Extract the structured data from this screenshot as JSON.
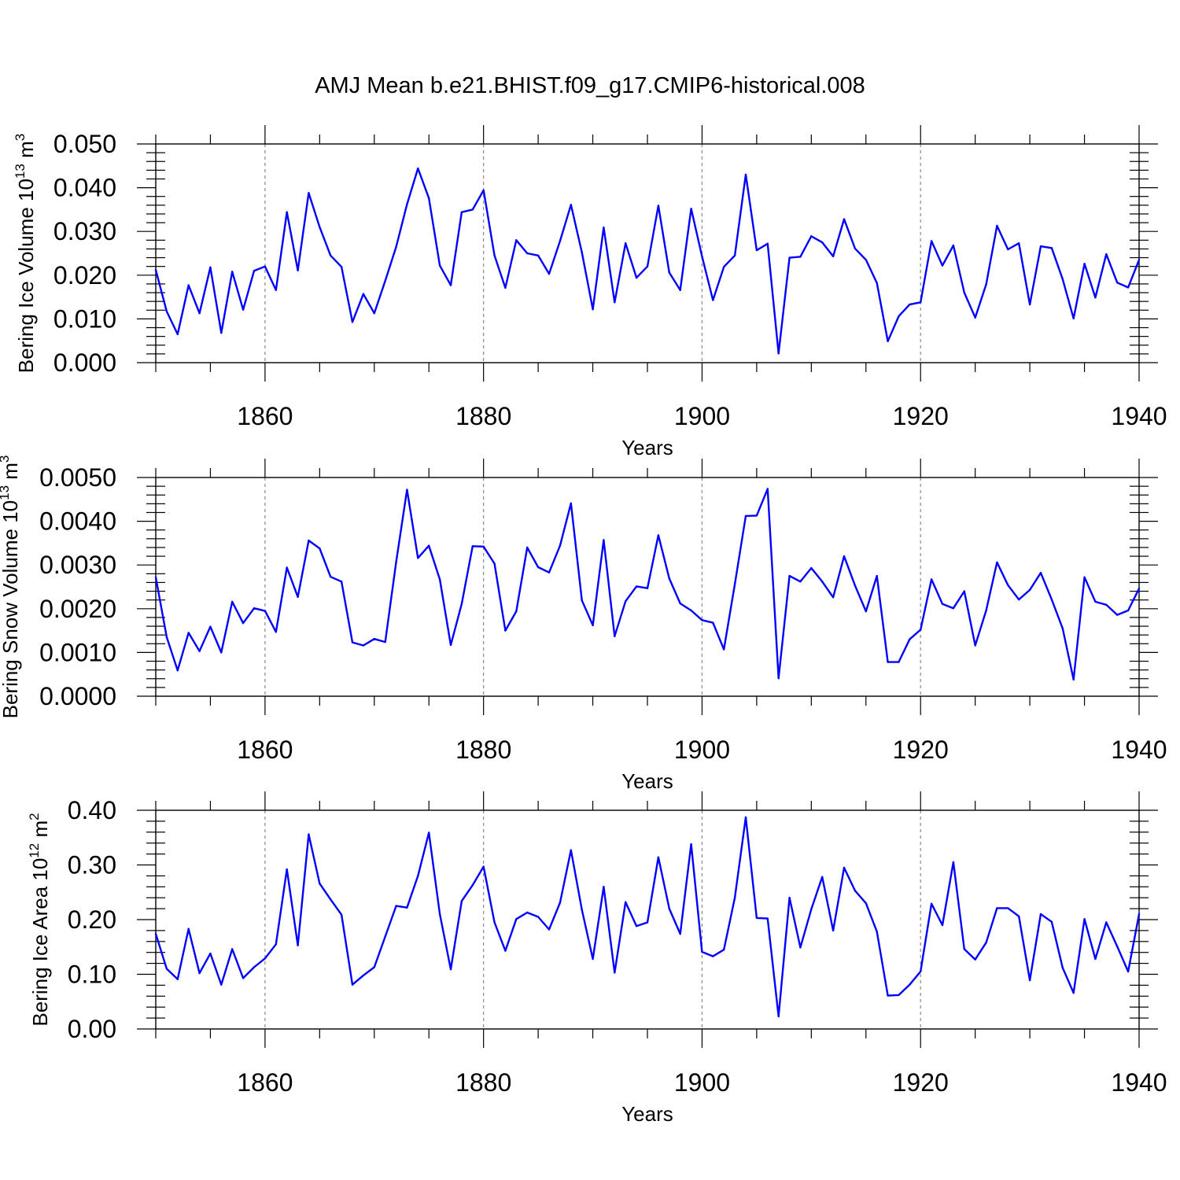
{
  "title": "AMJ Mean b.e21.BHIST.f09_g17.CMIP6-historical.008",
  "colors": {
    "line": "#0000ff",
    "axis": "#000000",
    "grid": "#888888"
  },
  "chart_data": [
    {
      "type": "line",
      "ylabel": "Bering Ice Volume 10",
      "ylabel_exp": "13",
      "ylabel_unit": " m",
      "ylabel_unit_exp": "3",
      "xlabel": "Years",
      "xlim": [
        1850,
        1940
      ],
      "ylim": [
        0,
        0.05
      ],
      "yticks": [
        0.0,
        0.01,
        0.02,
        0.03,
        0.04,
        0.05
      ],
      "ytick_labels": [
        "0.000",
        "0.010",
        "0.020",
        "0.030",
        "0.040",
        "0.050"
      ],
      "xticks": [
        1860,
        1880,
        1900,
        1920,
        1940
      ],
      "xtick_labels": [
        "1860",
        "1880",
        "1900",
        "1920",
        "1940"
      ],
      "grid_x": [
        1860,
        1880,
        1900,
        1920
      ],
      "x_start": 1850,
      "values": [
        0.0212,
        0.0117,
        0.0065,
        0.0177,
        0.0113,
        0.0218,
        0.0068,
        0.0208,
        0.0121,
        0.021,
        0.022,
        0.0166,
        0.0344,
        0.0211,
        0.0388,
        0.031,
        0.0245,
        0.0219,
        0.0093,
        0.0157,
        0.0113,
        0.0187,
        0.0265,
        0.0362,
        0.0444,
        0.0376,
        0.0222,
        0.0177,
        0.0344,
        0.035,
        0.0394,
        0.0245,
        0.0171,
        0.028,
        0.025,
        0.0245,
        0.0203,
        0.0278,
        0.0361,
        0.0252,
        0.0122,
        0.0309,
        0.0138,
        0.0273,
        0.0194,
        0.022,
        0.0359,
        0.0206,
        0.0166,
        0.0352,
        0.0243,
        0.0143,
        0.0219,
        0.0245,
        0.043,
        0.0257,
        0.0272,
        0.0021,
        0.024,
        0.0242,
        0.0289,
        0.0275,
        0.0243,
        0.0328,
        0.0261,
        0.0235,
        0.0182,
        0.0049,
        0.0106,
        0.0133,
        0.0138,
        0.0278,
        0.0222,
        0.0268,
        0.016,
        0.0103,
        0.0179,
        0.0313,
        0.0259,
        0.0273,
        0.0133,
        0.0266,
        0.0262,
        0.0191,
        0.0101,
        0.0226,
        0.0149,
        0.0248,
        0.0183,
        0.0172,
        0.0235
      ]
    },
    {
      "type": "line",
      "ylabel": "Bering Snow Volume 10",
      "ylabel_exp": "13",
      "ylabel_unit": " m",
      "ylabel_unit_exp": "3",
      "xlabel": "Years",
      "xlim": [
        1850,
        1940
      ],
      "ylim": [
        0,
        0.005
      ],
      "yticks": [
        0.0,
        0.001,
        0.002,
        0.003,
        0.004,
        0.005
      ],
      "ytick_labels": [
        "0.0000",
        "0.0010",
        "0.0020",
        "0.0030",
        "0.0040",
        "0.0050"
      ],
      "xticks": [
        1860,
        1880,
        1900,
        1920,
        1940
      ],
      "xtick_labels": [
        "1860",
        "1880",
        "1900",
        "1920",
        "1940"
      ],
      "grid_x": [
        1860,
        1880,
        1900,
        1920
      ],
      "x_start": 1850,
      "values": [
        0.00272,
        0.00135,
        0.00059,
        0.00145,
        0.00103,
        0.00159,
        0.001,
        0.00216,
        0.00167,
        0.00201,
        0.00195,
        0.00147,
        0.00294,
        0.00227,
        0.00356,
        0.00338,
        0.00273,
        0.00262,
        0.00123,
        0.00116,
        0.00131,
        0.00124,
        0.00307,
        0.00472,
        0.00316,
        0.00344,
        0.00267,
        0.00117,
        0.00211,
        0.00343,
        0.00342,
        0.00303,
        0.0015,
        0.00194,
        0.0034,
        0.00295,
        0.00283,
        0.00344,
        0.00441,
        0.00219,
        0.00162,
        0.00357,
        0.00137,
        0.00217,
        0.00251,
        0.00247,
        0.00368,
        0.00269,
        0.00212,
        0.00196,
        0.00174,
        0.00168,
        0.00107,
        0.00256,
        0.00412,
        0.00413,
        0.00474,
        0.00041,
        0.00275,
        0.00262,
        0.00293,
        0.00262,
        0.00226,
        0.0032,
        0.00253,
        0.00194,
        0.00275,
        0.00078,
        0.00078,
        0.0013,
        0.00152,
        0.00267,
        0.00211,
        0.00201,
        0.0024,
        0.00116,
        0.00196,
        0.00306,
        0.00254,
        0.00221,
        0.00243,
        0.00282,
        0.00221,
        0.00155,
        0.00038,
        0.00272,
        0.00216,
        0.00209,
        0.00186,
        0.00196,
        0.00246
      ]
    },
    {
      "type": "line",
      "ylabel": "Bering Ice Area 10",
      "ylabel_exp": "12",
      "ylabel_unit": " m",
      "ylabel_unit_exp": "2",
      "xlabel": "Years",
      "xlim": [
        1850,
        1940
      ],
      "ylim": [
        0,
        0.4
      ],
      "yticks": [
        0.0,
        0.1,
        0.2,
        0.3,
        0.4
      ],
      "ytick_labels": [
        "0.00",
        "0.10",
        "0.20",
        "0.30",
        "0.40"
      ],
      "xticks": [
        1860,
        1880,
        1900,
        1920,
        1940
      ],
      "xtick_labels": [
        "1860",
        "1880",
        "1900",
        "1920",
        "1940"
      ],
      "grid_x": [
        1860,
        1880,
        1900,
        1920
      ],
      "x_start": 1850,
      "values": [
        0.174,
        0.11,
        0.091,
        0.183,
        0.102,
        0.138,
        0.081,
        0.146,
        0.093,
        0.113,
        0.129,
        0.155,
        0.292,
        0.153,
        0.356,
        0.266,
        0.237,
        0.209,
        0.081,
        0.098,
        0.113,
        0.169,
        0.225,
        0.222,
        0.28,
        0.359,
        0.21,
        0.109,
        0.234,
        0.263,
        0.297,
        0.195,
        0.143,
        0.201,
        0.213,
        0.205,
        0.182,
        0.231,
        0.327,
        0.218,
        0.128,
        0.26,
        0.103,
        0.232,
        0.188,
        0.195,
        0.314,
        0.22,
        0.174,
        0.338,
        0.141,
        0.133,
        0.145,
        0.24,
        0.387,
        0.203,
        0.202,
        0.023,
        0.24,
        0.149,
        0.219,
        0.278,
        0.18,
        0.295,
        0.253,
        0.23,
        0.178,
        0.061,
        0.062,
        0.081,
        0.105,
        0.229,
        0.19,
        0.305,
        0.146,
        0.127,
        0.158,
        0.221,
        0.221,
        0.206,
        0.089,
        0.21,
        0.196,
        0.112,
        0.066,
        0.201,
        0.128,
        0.195,
        0.151,
        0.105,
        0.21
      ]
    }
  ]
}
